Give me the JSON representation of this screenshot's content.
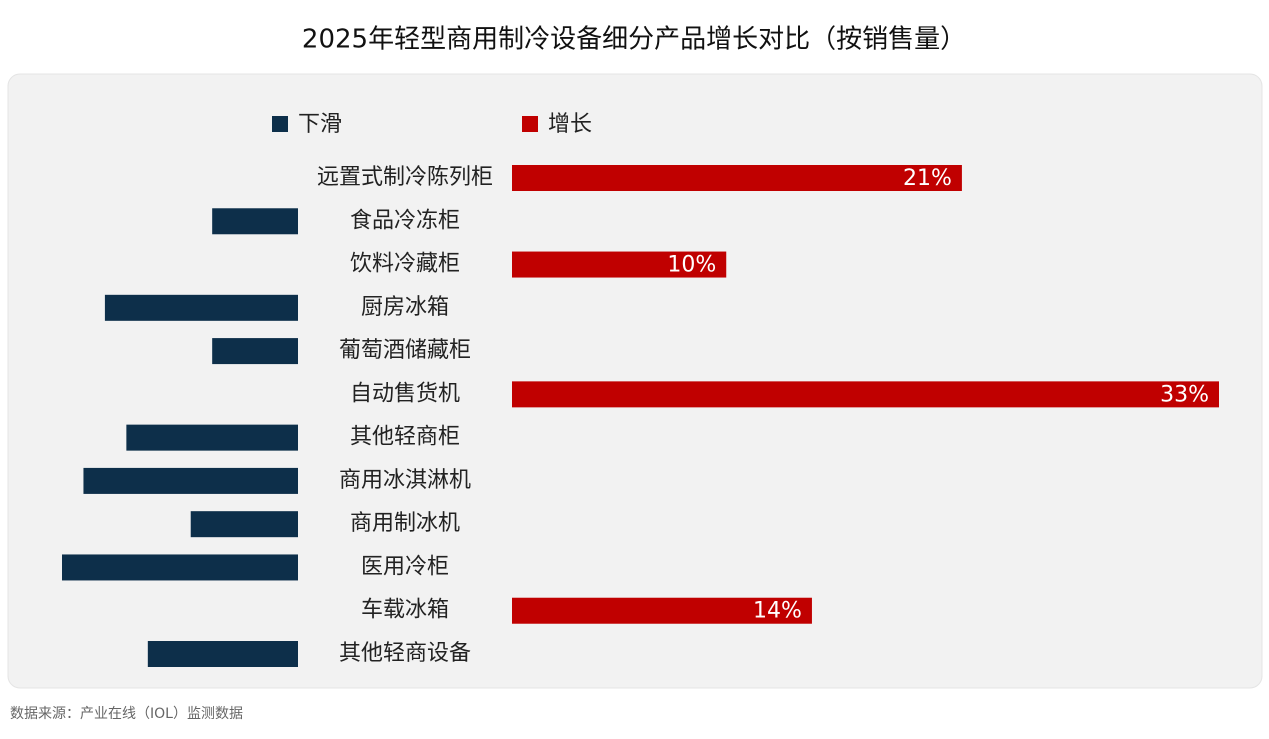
{
  "chart_data": {
    "type": "diverging-bar",
    "title": "2025年轻型商用制冷设备细分产品增长对比（按销售量）",
    "categories": [
      "远置式制冷陈列柜",
      "食品冷冻柜",
      "饮料冷藏柜",
      "厨房冰箱",
      "葡萄酒储藏柜",
      "自动售货机",
      "其他轻商柜",
      "商用冰淇淋机",
      "商用制冰机",
      "医用冷柜",
      "车载冰箱",
      "其他轻商设备"
    ],
    "series": [
      {
        "name": "下滑",
        "color": "#0d2f4a",
        "values": [
          null,
          -4,
          null,
          -9,
          -4,
          null,
          -8,
          -10,
          -5,
          -11,
          null,
          -7
        ]
      },
      {
        "name": "增长",
        "color": "#c00000",
        "values": [
          21,
          null,
          10,
          null,
          null,
          33,
          null,
          null,
          null,
          null,
          14,
          null
        ],
        "value_labels": [
          "21%",
          null,
          "10%",
          null,
          null,
          "33%",
          null,
          null,
          null,
          null,
          "14%",
          null
        ]
      }
    ],
    "xlim": [
      -11,
      33
    ],
    "source": "数据来源：产业在线（IOL）监测数据"
  }
}
